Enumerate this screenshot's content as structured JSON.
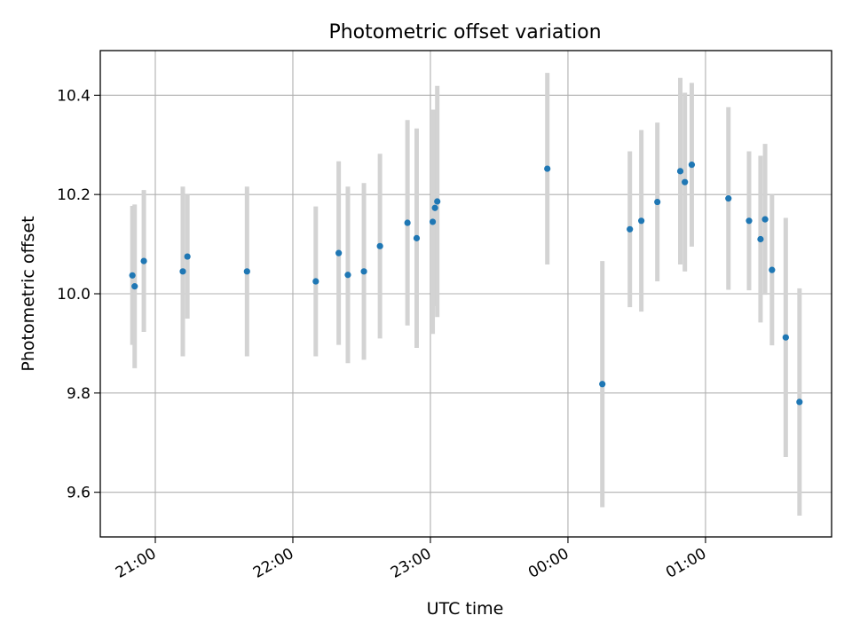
{
  "chart_data": {
    "type": "scatter",
    "title": "Photometric offset variation",
    "xlabel": "UTC time",
    "ylabel": "Photometric offset",
    "x_ticks": [
      "21:00",
      "22:00",
      "23:00",
      "00:00",
      "01:00"
    ],
    "y_ticks": [
      "9.6",
      "9.8",
      "10.0",
      "10.2",
      "10.4"
    ],
    "xlim": [
      "20:36",
      "01:55"
    ],
    "ylim": [
      9.51,
      10.49
    ],
    "grid": true,
    "series": [
      {
        "points": [
          {
            "x": "20:50",
            "y": 10.037,
            "err": 0.14
          },
          {
            "x": "20:51",
            "y": 10.015,
            "err": 0.165
          },
          {
            "x": "20:55",
            "y": 10.066,
            "err": 0.143
          },
          {
            "x": "21:12",
            "y": 10.045,
            "err": 0.171
          },
          {
            "x": "21:14",
            "y": 10.075,
            "err": 0.125
          },
          {
            "x": "21:40",
            "y": 10.045,
            "err": 0.171
          },
          {
            "x": "22:10",
            "y": 10.025,
            "err": 0.151
          },
          {
            "x": "22:20",
            "y": 10.082,
            "err": 0.185
          },
          {
            "x": "22:24",
            "y": 10.038,
            "err": 0.178
          },
          {
            "x": "22:31",
            "y": 10.045,
            "err": 0.178
          },
          {
            "x": "22:38",
            "y": 10.096,
            "err": 0.186
          },
          {
            "x": "22:50",
            "y": 10.143,
            "err": 0.207
          },
          {
            "x": "22:54",
            "y": 10.112,
            "err": 0.221
          },
          {
            "x": "23:01",
            "y": 10.145,
            "err": 0.226
          },
          {
            "x": "23:02",
            "y": 10.173,
            "err": 0.198
          },
          {
            "x": "23:03",
            "y": 10.186,
            "err": 0.233
          },
          {
            "x": "23:51",
            "y": 10.252,
            "err": 0.193
          },
          {
            "x": "00:15",
            "y": 9.818,
            "err": 0.248
          },
          {
            "x": "00:27",
            "y": 10.13,
            "err": 0.157
          },
          {
            "x": "00:32",
            "y": 10.147,
            "err": 0.183
          },
          {
            "x": "00:39",
            "y": 10.185,
            "err": 0.16
          },
          {
            "x": "00:49",
            "y": 10.247,
            "err": 0.188
          },
          {
            "x": "00:51",
            "y": 10.225,
            "err": 0.18
          },
          {
            "x": "00:54",
            "y": 10.26,
            "err": 0.165
          },
          {
            "x": "01:10",
            "y": 10.192,
            "err": 0.184
          },
          {
            "x": "01:19",
            "y": 10.147,
            "err": 0.14
          },
          {
            "x": "01:24",
            "y": 10.11,
            "err": 0.168
          },
          {
            "x": "01:26",
            "y": 10.15,
            "err": 0.152
          },
          {
            "x": "01:29",
            "y": 10.048,
            "err": 0.152
          },
          {
            "x": "01:35",
            "y": 9.912,
            "err": 0.241
          },
          {
            "x": "01:41",
            "y": 9.782,
            "err": 0.229
          }
        ],
        "color": "#1f77b4",
        "error_bar_color": "#d3d3d3"
      }
    ]
  }
}
